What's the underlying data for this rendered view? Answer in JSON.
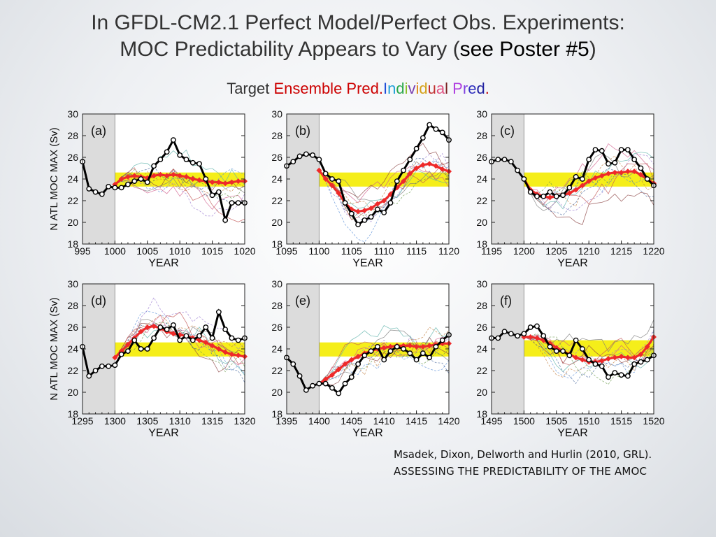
{
  "title": {
    "line1": "In GFDL-CM2.1 Perfect Model/Perfect Obs. Experiments:",
    "line2_before": "MOC Predictability Appears to Vary (",
    "line2_highlight": "see Poster #5",
    "line2_after": ")"
  },
  "legend_line": {
    "target": "Target",
    "ensemble": "Ensemble Pred.",
    "individual_letters": [
      {
        "ch": "I",
        "color": "#1f4fd8"
      },
      {
        "ch": "n",
        "color": "#1fa0d8"
      },
      {
        "ch": "d",
        "color": "#2aa84a"
      },
      {
        "ch": "i",
        "color": "#8bbf2a"
      },
      {
        "ch": "v",
        "color": "#7a3fb0"
      },
      {
        "ch": "i",
        "color": "#e08a1a"
      },
      {
        "ch": "d",
        "color": "#d4a017"
      },
      {
        "ch": "u",
        "color": "#c03030"
      },
      {
        "ch": "a",
        "color": "#e05080"
      },
      {
        "ch": "l",
        "color": "#7a2020"
      },
      {
        "ch": " ",
        "color": "#000000"
      },
      {
        "ch": "P",
        "color": "#b040e0"
      },
      {
        "ch": "r",
        "color": "#8040e0"
      },
      {
        "ch": "e",
        "color": "#3030c0"
      },
      {
        "ch": "d",
        "color": "#2020a0"
      },
      {
        "ch": ".",
        "color": "#c00000"
      }
    ],
    "colors": {
      "target": "#333333",
      "ensemble": "#cc0000"
    }
  },
  "citation": {
    "line1": "Msadek, Dixon, Delworth and Hurlin (2010, GRL).",
    "line2": "ASSESSING THE PREDICTABILITY OF THE AMOC"
  },
  "colors": {
    "band": "#f5ee1a",
    "target_line": "#000000",
    "ensemble_line": "#ee2a2a",
    "shade": "#dcdcdc"
  },
  "chart_data": [
    {
      "type": "line",
      "panel_label": "(a)",
      "xlabel": "YEAR",
      "ylabel": "N ATL MOC MAX (Sv)",
      "xlim": [
        995,
        1020
      ],
      "ylim": [
        18,
        30
      ],
      "xticks": [
        995,
        1000,
        1005,
        1010,
        1015,
        1020
      ],
      "yticks": [
        18,
        20,
        22,
        24,
        26,
        28,
        30
      ],
      "init_year": 1000,
      "band": [
        23.3,
        24.6
      ],
      "series": [
        {
          "role": "target",
          "x": [
            995,
            996,
            997,
            998,
            999,
            1000,
            1001,
            1002,
            1003,
            1004,
            1005,
            1006,
            1007,
            1008,
            1009,
            1010,
            1011,
            1012,
            1013,
            1014,
            1015,
            1016,
            1017,
            1018,
            1019,
            1020
          ],
          "values": [
            25.6,
            23.1,
            22.8,
            22.6,
            23.3,
            23.2,
            23.2,
            23.5,
            23.8,
            24.0,
            23.7,
            25.2,
            25.8,
            26.5,
            27.6,
            26.2,
            25.8,
            25.5,
            25.4,
            24.0,
            22.5,
            22.8,
            20.2,
            21.8,
            21.8,
            21.8
          ]
        },
        {
          "role": "ensemble",
          "x": [
            1000,
            1001,
            1002,
            1003,
            1004,
            1005,
            1006,
            1007,
            1008,
            1009,
            1010,
            1011,
            1012,
            1013,
            1014,
            1015,
            1016,
            1017,
            1018,
            1019,
            1020
          ],
          "values": [
            23.5,
            24.0,
            24.2,
            24.3,
            24.2,
            24.1,
            24.3,
            24.4,
            24.3,
            24.4,
            24.3,
            24.2,
            24.0,
            23.9,
            23.8,
            23.7,
            23.7,
            23.6,
            23.7,
            23.8,
            23.8
          ]
        }
      ]
    },
    {
      "type": "line",
      "panel_label": "(b)",
      "xlabel": "YEAR",
      "ylabel": "",
      "xlim": [
        1095,
        1120
      ],
      "ylim": [
        18,
        30
      ],
      "xticks": [
        1095,
        1100,
        1105,
        1110,
        1115,
        1120
      ],
      "yticks": [
        18,
        20,
        22,
        24,
        26,
        28,
        30
      ],
      "init_year": 1100,
      "band": [
        23.3,
        24.6
      ],
      "series": [
        {
          "role": "target",
          "x": [
            1095,
            1096,
            1097,
            1098,
            1099,
            1100,
            1101,
            1102,
            1103,
            1104,
            1105,
            1106,
            1107,
            1108,
            1109,
            1110,
            1111,
            1112,
            1113,
            1114,
            1115,
            1116,
            1117,
            1118,
            1119,
            1120
          ],
          "values": [
            25.2,
            25.6,
            26.1,
            26.3,
            26.2,
            25.8,
            24.5,
            24.0,
            23.8,
            21.8,
            20.8,
            19.8,
            20.2,
            20.5,
            21.2,
            20.9,
            21.8,
            23.8,
            24.8,
            25.8,
            26.8,
            27.8,
            29.0,
            28.6,
            28.3,
            27.6
          ]
        },
        {
          "role": "ensemble",
          "x": [
            1100,
            1101,
            1102,
            1103,
            1104,
            1105,
            1106,
            1107,
            1108,
            1109,
            1110,
            1111,
            1112,
            1113,
            1114,
            1115,
            1116,
            1117,
            1118,
            1119,
            1120
          ],
          "values": [
            24.8,
            24.0,
            23.4,
            22.7,
            21.8,
            21.2,
            21.0,
            21.1,
            21.3,
            21.7,
            22.0,
            22.6,
            23.2,
            23.8,
            24.5,
            25.0,
            25.3,
            25.4,
            25.2,
            24.9,
            24.7
          ]
        }
      ]
    },
    {
      "type": "line",
      "panel_label": "(c)",
      "xlabel": "YEAR",
      "ylabel": "",
      "xlim": [
        1195,
        1220
      ],
      "ylim": [
        18,
        30
      ],
      "xticks": [
        1195,
        1200,
        1205,
        1210,
        1215,
        1220
      ],
      "yticks": [
        18,
        20,
        22,
        24,
        26,
        28,
        30
      ],
      "init_year": 1200,
      "band": [
        23.3,
        24.6
      ],
      "series": [
        {
          "role": "target",
          "x": [
            1195,
            1196,
            1197,
            1198,
            1199,
            1200,
            1201,
            1202,
            1203,
            1204,
            1205,
            1206,
            1207,
            1208,
            1209,
            1210,
            1211,
            1212,
            1213,
            1214,
            1215,
            1216,
            1217,
            1218,
            1219,
            1220
          ],
          "values": [
            25.6,
            25.8,
            25.8,
            25.6,
            24.8,
            24.0,
            22.8,
            22.4,
            22.4,
            22.8,
            22.4,
            22.5,
            23.2,
            24.2,
            24.0,
            25.8,
            26.7,
            26.6,
            25.4,
            25.5,
            26.7,
            26.7,
            25.8,
            25.0,
            24.0,
            23.4
          ]
        },
        {
          "role": "ensemble",
          "x": [
            1200,
            1201,
            1202,
            1203,
            1204,
            1205,
            1206,
            1207,
            1208,
            1209,
            1210,
            1211,
            1212,
            1213,
            1214,
            1215,
            1216,
            1217,
            1218,
            1219,
            1220
          ],
          "values": [
            24.0,
            23.0,
            22.6,
            22.4,
            22.3,
            22.4,
            22.5,
            22.7,
            23.0,
            23.4,
            23.8,
            24.1,
            24.3,
            24.5,
            24.6,
            24.6,
            24.7,
            24.7,
            24.4,
            24.0,
            23.6
          ]
        }
      ]
    },
    {
      "type": "line",
      "panel_label": "(d)",
      "xlabel": "YEAR",
      "ylabel": "N ATL MOC MAX (Sv)",
      "xlim": [
        1295,
        1320
      ],
      "ylim": [
        18,
        30
      ],
      "xticks": [
        1295,
        1300,
        1305,
        1310,
        1315,
        1320
      ],
      "yticks": [
        18,
        20,
        22,
        24,
        26,
        28,
        30
      ],
      "init_year": 1300,
      "band": [
        23.3,
        24.6
      ],
      "series": [
        {
          "role": "target",
          "x": [
            1295,
            1296,
            1297,
            1298,
            1299,
            1300,
            1301,
            1302,
            1303,
            1304,
            1305,
            1306,
            1307,
            1308,
            1309,
            1310,
            1311,
            1312,
            1313,
            1314,
            1315,
            1316,
            1317,
            1318,
            1319,
            1320
          ],
          "values": [
            24.2,
            21.5,
            22.0,
            22.4,
            22.4,
            22.5,
            23.5,
            23.8,
            24.8,
            24.0,
            24.0,
            25.0,
            26.0,
            25.8,
            26.2,
            24.8,
            25.2,
            24.8,
            25.2,
            26.0,
            25.0,
            27.4,
            25.8,
            25.0,
            24.8,
            25.0
          ]
        },
        {
          "role": "ensemble",
          "x": [
            1300,
            1301,
            1302,
            1303,
            1304,
            1305,
            1306,
            1307,
            1308,
            1309,
            1310,
            1311,
            1312,
            1313,
            1314,
            1315,
            1316,
            1317,
            1318,
            1319,
            1320
          ],
          "values": [
            23.2,
            23.8,
            24.4,
            25.0,
            25.6,
            26.0,
            26.1,
            25.9,
            25.6,
            25.4,
            25.3,
            25.2,
            25.0,
            24.8,
            24.6,
            24.3,
            24.0,
            23.7,
            23.5,
            23.4,
            23.3
          ]
        }
      ]
    },
    {
      "type": "line",
      "panel_label": "(e)",
      "xlabel": "YEAR",
      "ylabel": "",
      "xlim": [
        1395,
        1420
      ],
      "ylim": [
        18,
        30
      ],
      "xticks": [
        1395,
        1400,
        1405,
        1410,
        1415,
        1420
      ],
      "yticks": [
        18,
        20,
        22,
        24,
        26,
        28,
        30
      ],
      "init_year": 1400,
      "band": [
        23.3,
        24.6
      ],
      "series": [
        {
          "role": "target",
          "x": [
            1395,
            1396,
            1397,
            1398,
            1399,
            1400,
            1401,
            1402,
            1403,
            1404,
            1405,
            1406,
            1407,
            1408,
            1409,
            1410,
            1411,
            1412,
            1413,
            1414,
            1415,
            1416,
            1417,
            1418,
            1419,
            1420
          ],
          "values": [
            23.2,
            22.6,
            21.5,
            20.2,
            20.6,
            20.8,
            20.8,
            20.4,
            19.9,
            20.8,
            21.4,
            22.6,
            23.4,
            23.8,
            24.2,
            23.0,
            23.8,
            24.2,
            24.0,
            23.6,
            23.0,
            23.6,
            23.2,
            24.2,
            24.8,
            25.3
          ]
        },
        {
          "role": "ensemble",
          "x": [
            1400,
            1401,
            1402,
            1403,
            1404,
            1405,
            1406,
            1407,
            1408,
            1409,
            1410,
            1411,
            1412,
            1413,
            1414,
            1415,
            1416,
            1417,
            1418,
            1419,
            1420
          ],
          "values": [
            20.8,
            21.2,
            21.6,
            22.1,
            22.6,
            23.0,
            23.3,
            23.6,
            23.8,
            24.0,
            24.1,
            24.2,
            24.3,
            24.3,
            24.3,
            24.2,
            24.2,
            24.3,
            24.4,
            24.5,
            24.5
          ]
        }
      ]
    },
    {
      "type": "line",
      "panel_label": "(f)",
      "xlabel": "YEAR",
      "ylabel": "",
      "xlim": [
        1495,
        1520
      ],
      "ylim": [
        18,
        30
      ],
      "xticks": [
        1495,
        1500,
        1505,
        1510,
        1515,
        1520
      ],
      "yticks": [
        18,
        20,
        22,
        24,
        26,
        28,
        30
      ],
      "init_year": 1500,
      "band": [
        23.3,
        24.8
      ],
      "series": [
        {
          "role": "target",
          "x": [
            1495,
            1496,
            1497,
            1498,
            1499,
            1500,
            1501,
            1502,
            1503,
            1504,
            1505,
            1506,
            1507,
            1508,
            1509,
            1510,
            1511,
            1512,
            1513,
            1514,
            1515,
            1516,
            1517,
            1518,
            1519,
            1520
          ],
          "values": [
            25.0,
            25.0,
            25.6,
            25.4,
            25.2,
            25.4,
            26.0,
            26.1,
            25.2,
            24.2,
            23.8,
            23.8,
            23.4,
            24.8,
            24.0,
            23.0,
            22.6,
            22.4,
            21.4,
            21.8,
            21.6,
            21.5,
            22.6,
            22.8,
            23.0,
            23.4
          ]
        },
        {
          "role": "ensemble",
          "x": [
            1500,
            1501,
            1502,
            1503,
            1504,
            1505,
            1506,
            1507,
            1508,
            1509,
            1510,
            1511,
            1512,
            1513,
            1514,
            1515,
            1516,
            1517,
            1518,
            1519,
            1520
          ],
          "values": [
            25.1,
            25.1,
            25.0,
            24.8,
            24.5,
            24.1,
            23.8,
            23.5,
            23.2,
            23.0,
            22.8,
            22.8,
            22.9,
            23.1,
            23.2,
            23.3,
            23.2,
            23.2,
            23.5,
            24.2,
            25.1
          ]
        }
      ]
    }
  ]
}
